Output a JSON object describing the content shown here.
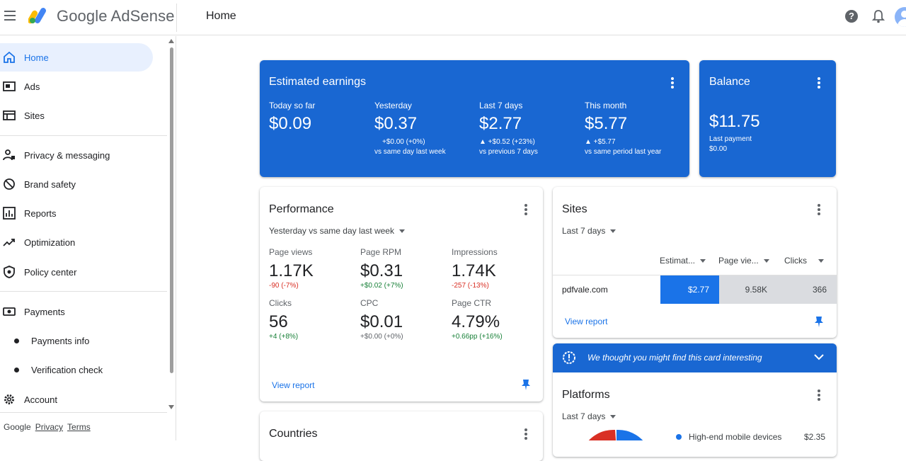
{
  "app": {
    "logo_text": "Google AdSense",
    "page_title": "Home"
  },
  "sidebar": {
    "items": [
      {
        "label": "Home",
        "icon": "home-icon"
      },
      {
        "label": "Ads",
        "icon": "ads-icon"
      },
      {
        "label": "Sites",
        "icon": "sites-icon"
      },
      {
        "label": "Privacy & messaging",
        "icon": "privacy-icon"
      },
      {
        "label": "Brand safety",
        "icon": "block-icon"
      },
      {
        "label": "Reports",
        "icon": "reports-icon"
      },
      {
        "label": "Optimization",
        "icon": "trending-icon"
      },
      {
        "label": "Policy center",
        "icon": "policy-icon"
      },
      {
        "label": "Payments",
        "icon": "payments-icon"
      },
      {
        "label": "Payments info",
        "icon": "bullet-icon"
      },
      {
        "label": "Verification check",
        "icon": "bullet-icon"
      },
      {
        "label": "Account",
        "icon": "gear-icon"
      }
    ],
    "footer": {
      "brand": "Google",
      "privacy": "Privacy",
      "terms": "Terms"
    }
  },
  "earnings": {
    "title": "Estimated earnings",
    "metrics": [
      {
        "label": "Today so far",
        "value": "$0.09",
        "delta": "",
        "compare": ""
      },
      {
        "label": "Yesterday",
        "value": "$0.37",
        "delta": "+$0.00 (+0%)",
        "compare": "vs same day last week"
      },
      {
        "label": "Last 7 days",
        "value": "$2.77",
        "delta": "▲ +$0.52 (+23%)",
        "compare": "vs previous 7 days"
      },
      {
        "label": "This month",
        "value": "$5.77",
        "delta": "▲ +$5.77",
        "compare": "vs same period last year"
      }
    ]
  },
  "balance": {
    "title": "Balance",
    "value": "$11.75",
    "last_payment_label": "Last payment",
    "last_payment_value": "$0.00"
  },
  "performance": {
    "title": "Performance",
    "range": "Yesterday vs same day last week",
    "metrics": [
      {
        "label": "Page views",
        "value": "1.17K",
        "delta": "-90 (-7%)",
        "trend": "neg"
      },
      {
        "label": "Page RPM",
        "value": "$0.31",
        "delta": "+$0.02 (+7%)",
        "trend": "pos"
      },
      {
        "label": "Impressions",
        "value": "1.74K",
        "delta": "-257 (-13%)",
        "trend": "neg"
      },
      {
        "label": "Clicks",
        "value": "56",
        "delta": "+4 (+8%)",
        "trend": "pos"
      },
      {
        "label": "CPC",
        "value": "$0.01",
        "delta": "+$0.00 (+0%)",
        "trend": "neu"
      },
      {
        "label": "Page CTR",
        "value": "4.79%",
        "delta": "+0.66pp (+16%)",
        "trend": "pos"
      }
    ],
    "link": "View report"
  },
  "sites": {
    "title": "Sites",
    "range": "Last 7 days",
    "columns": [
      "Estimat...",
      "Page vie...",
      "Clicks"
    ],
    "rows": [
      {
        "site": "pdfvale.com",
        "earnings": "$2.77",
        "page_views": "9.58K",
        "clicks": "366"
      }
    ],
    "link": "View report"
  },
  "banner": {
    "text": "We thought you might find this card interesting"
  },
  "platforms": {
    "title": "Platforms",
    "range": "Last 7 days",
    "legend_label": "High-end mobile devices",
    "legend_value": "$2.35"
  },
  "countries": {
    "title": "Countries"
  },
  "colors": {
    "brand_blue": "#1967d2",
    "accent": "#1a73e8",
    "negative": "#d93025",
    "positive": "#188038",
    "nav_active_bg": "#e8f0fe"
  }
}
